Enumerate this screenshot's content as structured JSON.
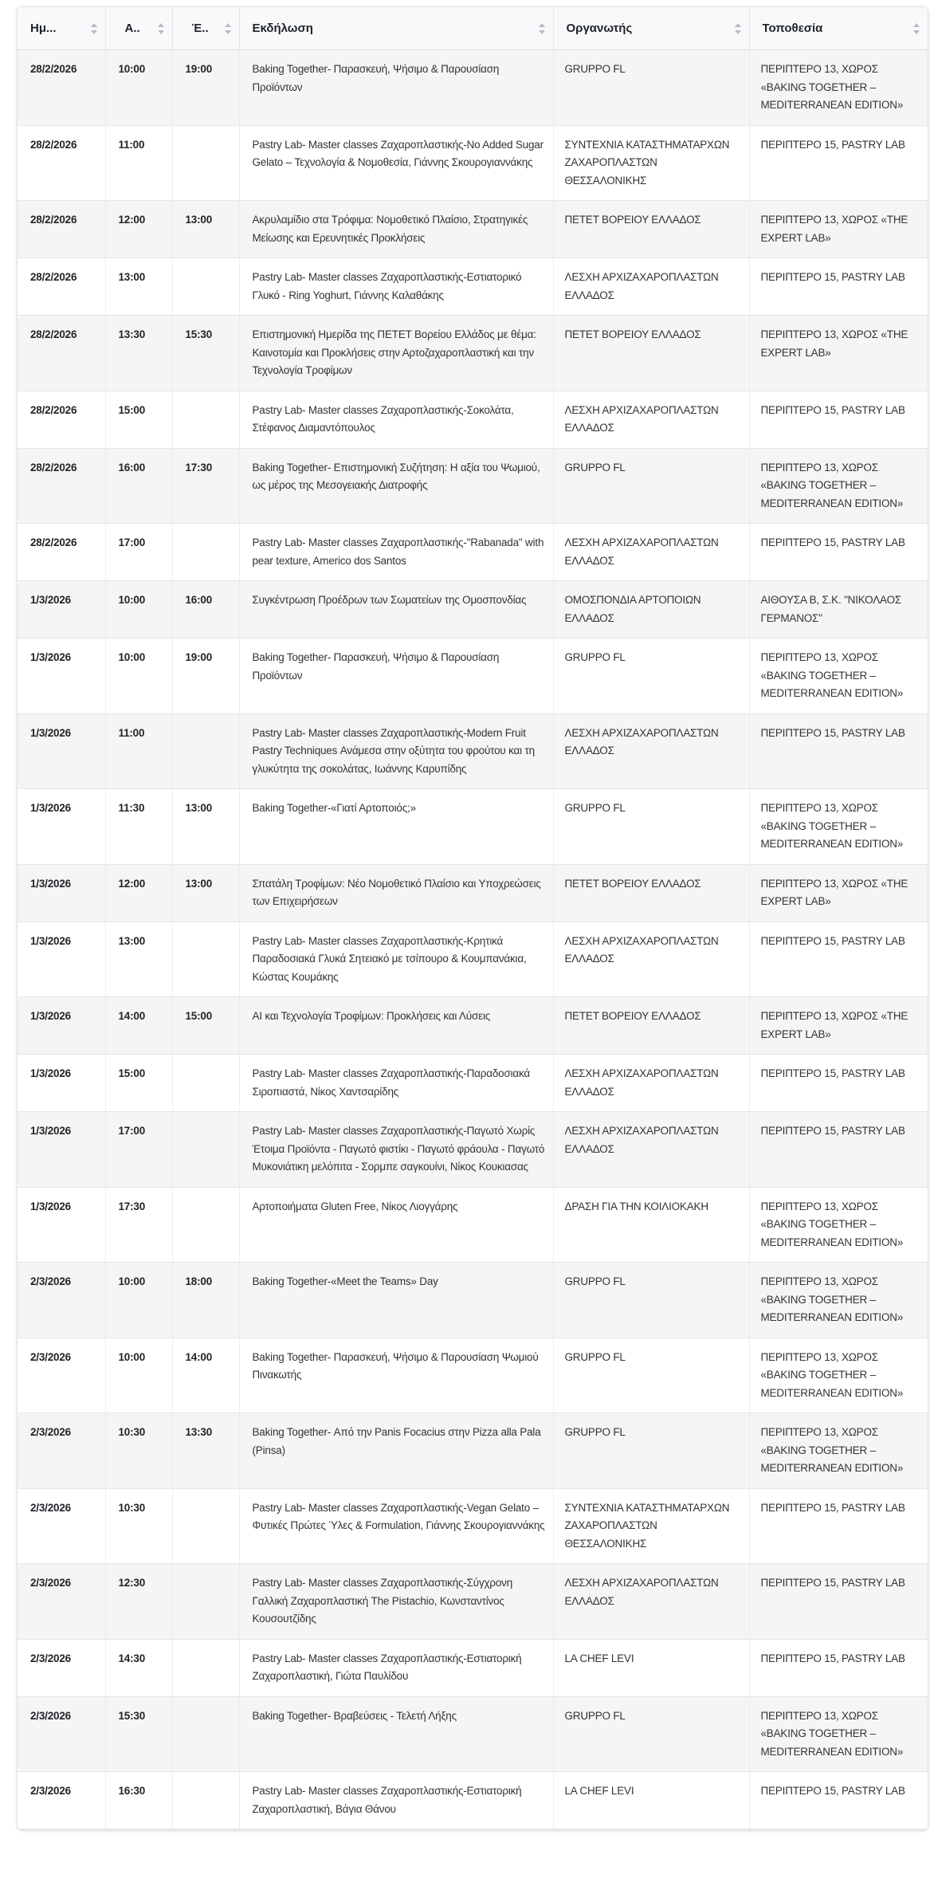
{
  "headers": [
    "Ημ...",
    "Α..",
    "Έ..",
    "Εκδήλωση",
    "Οργανωτής",
    "Τοποθεσία"
  ],
  "rows": [
    {
      "date": "28/2/2026",
      "start": "10:00",
      "end": "19:00",
      "event": "Baking Together- Παρασκευή, Ψήσιμο & Παρουσίαση Προϊόντων",
      "organizer": "GRUPPO FL",
      "location": "ΠΕΡΙΠΤΕΡΟ 13, ΧΩΡΟΣ «BAKING TOGETHER – MEDITERRANEAN EDITION»"
    },
    {
      "date": "28/2/2026",
      "start": "11:00",
      "end": "",
      "event": "Pastry Lab- Master classes Ζαχαροπλαστικής-No Added Sugar Gelato – Τεχνολογία & Νομοθεσία, Γιάννης Σκουρογιαννάκης",
      "organizer": "ΣΥΝΤΕΧΝΙΑ ΚΑΤΑΣΤΗΜΑΤΑΡΧΩΝ ΖΑΧΑΡΟΠΛΑΣΤΩΝ ΘΕΣΣΑΛΟΝΙΚΗΣ",
      "location": "ΠΕΡΙΠΤΕΡΟ 15, PASTRY LAB"
    },
    {
      "date": "28/2/2026",
      "start": "12:00",
      "end": "13:00",
      "event": "Ακρυλαμίδιο στα Τρόφιμα: Νομοθετικό Πλαίσιο, Στρατηγικές Μείωσης και Ερευνητικές Προκλήσεις",
      "organizer": "ΠΕΤΕΤ ΒΟΡΕΙΟΥ ΕΛΛΑΔΟΣ",
      "location": "ΠΕΡΙΠΤΕΡΟ 13, ΧΩΡΟΣ «THE EXPERT LAB»"
    },
    {
      "date": "28/2/2026",
      "start": "13:00",
      "end": "",
      "event": "Pastry Lab- Master classes Ζαχαροπλαστικής-Εστιατορικό Γλυκό - Ring Yoghurt, Γιάννης Καλαθάκης",
      "organizer": "ΛΕΣΧΗ ΑΡΧΙΖΑΧΑΡΟΠΛΑΣΤΩΝ ΕΛΛΑΔΟΣ",
      "location": "ΠΕΡΙΠΤΕΡΟ 15, PASTRY LAB"
    },
    {
      "date": "28/2/2026",
      "start": "13:30",
      "end": "15:30",
      "event": "Επιστημονική Ημερίδα της ΠΕΤΕΤ Βορείου Ελλάδος με θέμα: Καινοτομία και Προκλήσεις στην Αρτοζαχαροπλαστική και την Τεχνολογία Τροφίμων",
      "organizer": "ΠΕΤΕΤ ΒΟΡΕΙΟΥ ΕΛΛΑΔΟΣ",
      "location": "ΠΕΡΙΠΤΕΡΟ 13, ΧΩΡΟΣ «THE EXPERT LAB»"
    },
    {
      "date": "28/2/2026",
      "start": "15:00",
      "end": "",
      "event": "Pastry Lab- Master classes Ζαχαροπλαστικής-Σοκολάτα, Στέφανος Διαμαντόπουλος",
      "organizer": "ΛΕΣΧΗ ΑΡΧΙΖΑΧΑΡΟΠΛΑΣΤΩΝ ΕΛΛΑΔΟΣ",
      "location": "ΠΕΡΙΠΤΕΡΟ 15, PASTRY LAB"
    },
    {
      "date": "28/2/2026",
      "start": "16:00",
      "end": "17:30",
      "event": "Baking Together- Επιστημονική Συζήτηση: Η αξία του Ψωμιού, ως μέρος της Μεσογειακής Διατροφής",
      "organizer": "GRUPPO FL",
      "location": "ΠΕΡΙΠΤΕΡΟ 13, ΧΩΡΟΣ «BAKING TOGETHER – MEDITERRANEAN EDITION»"
    },
    {
      "date": "28/2/2026",
      "start": "17:00",
      "end": "",
      "event": "Pastry Lab- Master classes Ζαχαροπλαστικής-\"Rabanada\" with pear texture, Americo dos Santos",
      "organizer": "ΛΕΣΧΗ ΑΡΧΙΖΑΧΑΡΟΠΛΑΣΤΩΝ ΕΛΛΑΔΟΣ",
      "location": "ΠΕΡΙΠΤΕΡΟ 15, PASTRY LAB"
    },
    {
      "date": "1/3/2026",
      "start": "10:00",
      "end": "16:00",
      "event": "Συγκέντρωση Προέδρων των Σωματείων της Ομοσπονδίας",
      "organizer": "ΟΜΟΣΠΟΝΔΙΑ ΑΡΤΟΠΟΙΩΝ ΕΛΛΑΔΟΣ",
      "location": "ΑΙΘΟΥΣΑ Β, Σ.Κ. \"ΝΙΚΟΛΑΟΣ ΓΕΡΜΑΝΟΣ\""
    },
    {
      "date": "1/3/2026",
      "start": "10:00",
      "end": "19:00",
      "event": "Baking Together- Παρασκευή, Ψήσιμο & Παρουσίαση Προϊόντων",
      "organizer": "GRUPPO FL",
      "location": "ΠΕΡΙΠΤΕΡΟ 13, ΧΩΡΟΣ «BAKING TOGETHER – MEDITERRANEAN EDITION»"
    },
    {
      "date": "1/3/2026",
      "start": "11:00",
      "end": "",
      "event": "Pastry Lab- Master classes Ζαχαροπλαστικής-Modern Fruit Pastry Techniques Ανάμεσα στην οξύτητα του φρούτου και τη γλυκύτητα της σοκολάτας, Ιωάννης Καρυπίδης",
      "organizer": "ΛΕΣΧΗ ΑΡΧΙΖΑΧΑΡΟΠΛΑΣΤΩΝ ΕΛΛΑΔΟΣ",
      "location": "ΠΕΡΙΠΤΕΡΟ 15, PASTRY LAB"
    },
    {
      "date": "1/3/2026",
      "start": "11:30",
      "end": "13:00",
      "event": "Baking Together-«Γιατί Αρτοποιός;»",
      "organizer": "GRUPPO FL",
      "location": "ΠΕΡΙΠΤΕΡΟ 13, ΧΩΡΟΣ «BAKING TOGETHER – MEDITERRANEAN EDITION»"
    },
    {
      "date": "1/3/2026",
      "start": "12:00",
      "end": "13:00",
      "event": "Σπατάλη Τροφίμων: Νέο Νομοθετικό Πλαίσιο και Υποχρεώσεις των Επιχειρήσεων",
      "organizer": "ΠΕΤΕΤ ΒΟΡΕΙΟΥ ΕΛΛΑΔΟΣ",
      "location": "ΠΕΡΙΠΤΕΡΟ 13, ΧΩΡΟΣ «THE EXPERT LAB»"
    },
    {
      "date": "1/3/2026",
      "start": "13:00",
      "end": "",
      "event": "Pastry Lab- Master classes Ζαχαροπλαστικής-Κρητικά Παραδοσιακά Γλυκά Σητειακό με τσίπουρο & Κουμπανάκια, Κώστας Κουμάκης",
      "organizer": "ΛΕΣΧΗ ΑΡΧΙΖΑΧΑΡΟΠΛΑΣΤΩΝ ΕΛΛΑΔΟΣ",
      "location": "ΠΕΡΙΠΤΕΡΟ 15, PASTRY LAB"
    },
    {
      "date": "1/3/2026",
      "start": "14:00",
      "end": "15:00",
      "event": "AI και Τεχνολογία Τροφίμων: Προκλήσεις και Λύσεις",
      "organizer": "ΠΕΤΕΤ ΒΟΡΕΙΟΥ ΕΛΛΑΔΟΣ",
      "location": "ΠΕΡΙΠΤΕΡΟ 13, ΧΩΡΟΣ «THE EXPERT LAB»"
    },
    {
      "date": "1/3/2026",
      "start": "15:00",
      "end": "",
      "event": "Pastry Lab- Master classes Ζαχαροπλαστικής-Παραδοσιακά Σιροπιαστά, Νίκος Χαντσαρίδης",
      "organizer": "ΛΕΣΧΗ ΑΡΧΙΖΑΧΑΡΟΠΛΑΣΤΩΝ ΕΛΛΑΔΟΣ",
      "location": "ΠΕΡΙΠΤΕΡΟ 15, PASTRY LAB"
    },
    {
      "date": "1/3/2026",
      "start": "17:00",
      "end": "",
      "event": "Pastry Lab- Master classes Ζαχαροπλαστικής-Παγωτό Χωρίς Έτοιμα Προϊόντα - Παγωτό φιστίκι - Παγωτό φράουλα - Παγωτό Μυκονιάτικη μελόπιτα - Σορμπε σαγκουίνι, Νίκος Κουκιασας",
      "organizer": "ΛΕΣΧΗ ΑΡΧΙΖΑΧΑΡΟΠΛΑΣΤΩΝ ΕΛΛΑΔΟΣ",
      "location": "ΠΕΡΙΠΤΕΡΟ 15, PASTRY LAB"
    },
    {
      "date": "1/3/2026",
      "start": "17:30",
      "end": "",
      "event": "Αρτοποιήματα Gluten Free, Νίκος Λιογγάρης",
      "organizer": "ΔΡΑΣΗ ΓΙΑ ΤΗΝ ΚΟΙΛΙΟΚΑΚΗ",
      "location": "ΠΕΡΙΠΤΕΡΟ 13, ΧΩΡΟΣ «BAKING TOGETHER – MEDITERRANEAN EDITION»"
    },
    {
      "date": "2/3/2026",
      "start": "10:00",
      "end": "18:00",
      "event": "Baking Together-«Meet the Teams» Day",
      "organizer": "GRUPPO FL",
      "location": "ΠΕΡΙΠΤΕΡΟ 13, ΧΩΡΟΣ «BAKING TOGETHER – MEDITERRANEAN EDITION»"
    },
    {
      "date": "2/3/2026",
      "start": "10:00",
      "end": "14:00",
      "event": "Baking Together- Παρασκευή, Ψήσιμο & Παρουσίαση Ψωμιού Πινακωτής",
      "organizer": "GRUPPO FL",
      "location": "ΠΕΡΙΠΤΕΡΟ 13, ΧΩΡΟΣ «BAKING TOGETHER – MEDITERRANEAN EDITION»"
    },
    {
      "date": "2/3/2026",
      "start": "10:30",
      "end": "13:30",
      "event": "Baking Together- Από την Panis Focacius στην Pizza alla Pala (Pinsa)",
      "organizer": "GRUPPO FL",
      "location": "ΠΕΡΙΠΤΕΡΟ 13, ΧΩΡΟΣ «BAKING TOGETHER – MEDITERRANEAN EDITION»"
    },
    {
      "date": "2/3/2026",
      "start": "10:30",
      "end": "",
      "event": "Pastry Lab- Master classes Ζαχαροπλαστικής-Vegan Gelato – Φυτικές Πρώτες Ύλες & Formulation, Γιάννης Σκουρογιαννάκης",
      "organizer": "ΣΥΝΤΕΧΝΙΑ ΚΑΤΑΣΤΗΜΑΤΑΡΧΩΝ ΖΑΧΑΡΟΠΛΑΣΤΩΝ ΘΕΣΣΑΛΟΝΙΚΗΣ",
      "location": "ΠΕΡΙΠΤΕΡΟ 15, PASTRY LAB"
    },
    {
      "date": "2/3/2026",
      "start": "12:30",
      "end": "",
      "event": "Pastry Lab- Master classes Ζαχαροπλαστικής-Σύγχρονη Γαλλική Ζαχαροπλαστική The Pistachio, Κωνσταντίνος Κουσουτζίδης",
      "organizer": "ΛΕΣΧΗ ΑΡΧΙΖΑΧΑΡΟΠΛΑΣΤΩΝ ΕΛΛΑΔΟΣ",
      "location": "ΠΕΡΙΠΤΕΡΟ 15, PASTRY LAB"
    },
    {
      "date": "2/3/2026",
      "start": "14:30",
      "end": "",
      "event": "Pastry Lab- Master classes Ζαχαροπλαστικής-Εστιατορική Ζαχαροπλαστική, Γιώτα Παυλίδου",
      "organizer": "LA CHEF LEVI",
      "location": "ΠΕΡΙΠΤΕΡΟ 15, PASTRY LAB"
    },
    {
      "date": "2/3/2026",
      "start": "15:30",
      "end": "",
      "event": "Baking Together- Βραβεύσεις - Τελετή Λήξης",
      "organizer": "GRUPPO FL",
      "location": "ΠΕΡΙΠΤΕΡΟ 13, ΧΩΡΟΣ «BAKING TOGETHER – MEDITERRANEAN EDITION»"
    },
    {
      "date": "2/3/2026",
      "start": "16:30",
      "end": "",
      "event": "Pastry Lab- Master classes Ζαχαροπλαστικής-Εστιατορική Ζαχαροπλαστική, Βάγια Θάνου",
      "organizer": "LA CHEF LEVI",
      "location": "ΠΕΡΙΠΤΕΡΟ 15, PASTRY LAB"
    }
  ]
}
